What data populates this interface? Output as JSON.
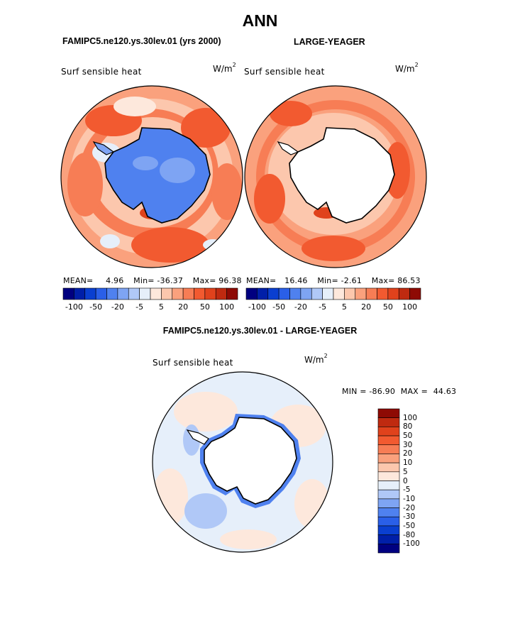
{
  "header": {
    "title": "ANN",
    "left_case": "FAMIPC5.ne120.ys.30lev.01 (yrs 2000)",
    "right_case": "LARGE-YEAGER",
    "diff_case": "FAMIPC5.ne120.ys.30lev.01 - LARGE-YEAGER"
  },
  "panels": {
    "left": {
      "label": "Surf sensible heat",
      "units_base": "W/m",
      "units_exp": "2",
      "mean_label": "MEAN=",
      "mean_value": "4.96",
      "min_label": "Min=",
      "min_value": "-36.37",
      "max_label": "Max=",
      "max_value": "96.38"
    },
    "right": {
      "label": "Surf sensible heat",
      "units_base": "W/m",
      "units_exp": "2",
      "mean_label": "MEAN=",
      "mean_value": "16.46",
      "min_label": "Min=",
      "min_value": "-2.61",
      "max_label": "Max=",
      "max_value": "86.53"
    },
    "diff": {
      "label": "Surf sensible heat",
      "units_base": "W/m",
      "units_exp": "2",
      "min_label": "MIN =",
      "min_value": "-86.90",
      "max_label": "MAX =",
      "max_value": "44.63"
    }
  },
  "colorbar_top": {
    "colors": [
      "#000080",
      "#001fa8",
      "#0a3fd0",
      "#2a5fe8",
      "#4f81ef",
      "#7ea4f3",
      "#b0c8f7",
      "#e6effa",
      "#fde8dc",
      "#fcc7ad",
      "#faa17d",
      "#f77d55",
      "#f25a30",
      "#e0421c",
      "#bf2a10",
      "#8e0a04"
    ],
    "ticks": [
      "-100",
      "-50",
      "-20",
      "-5",
      "5",
      "20",
      "50",
      "100"
    ]
  },
  "colorbar_diff": {
    "colors": [
      "#8e0a04",
      "#bf2a10",
      "#e0421c",
      "#f25a30",
      "#f77d55",
      "#faa17d",
      "#fcc7ad",
      "#fde8dc",
      "#e6effa",
      "#b0c8f7",
      "#7ea4f3",
      "#4f81ef",
      "#2a5fe8",
      "#0a3fd0",
      "#001fa8",
      "#000080"
    ],
    "ticks": [
      "100",
      "80",
      "50",
      "30",
      "20",
      "10",
      "5",
      "0",
      "-5",
      "-10",
      "-20",
      "-30",
      "-50",
      "-80",
      "-100"
    ]
  }
}
